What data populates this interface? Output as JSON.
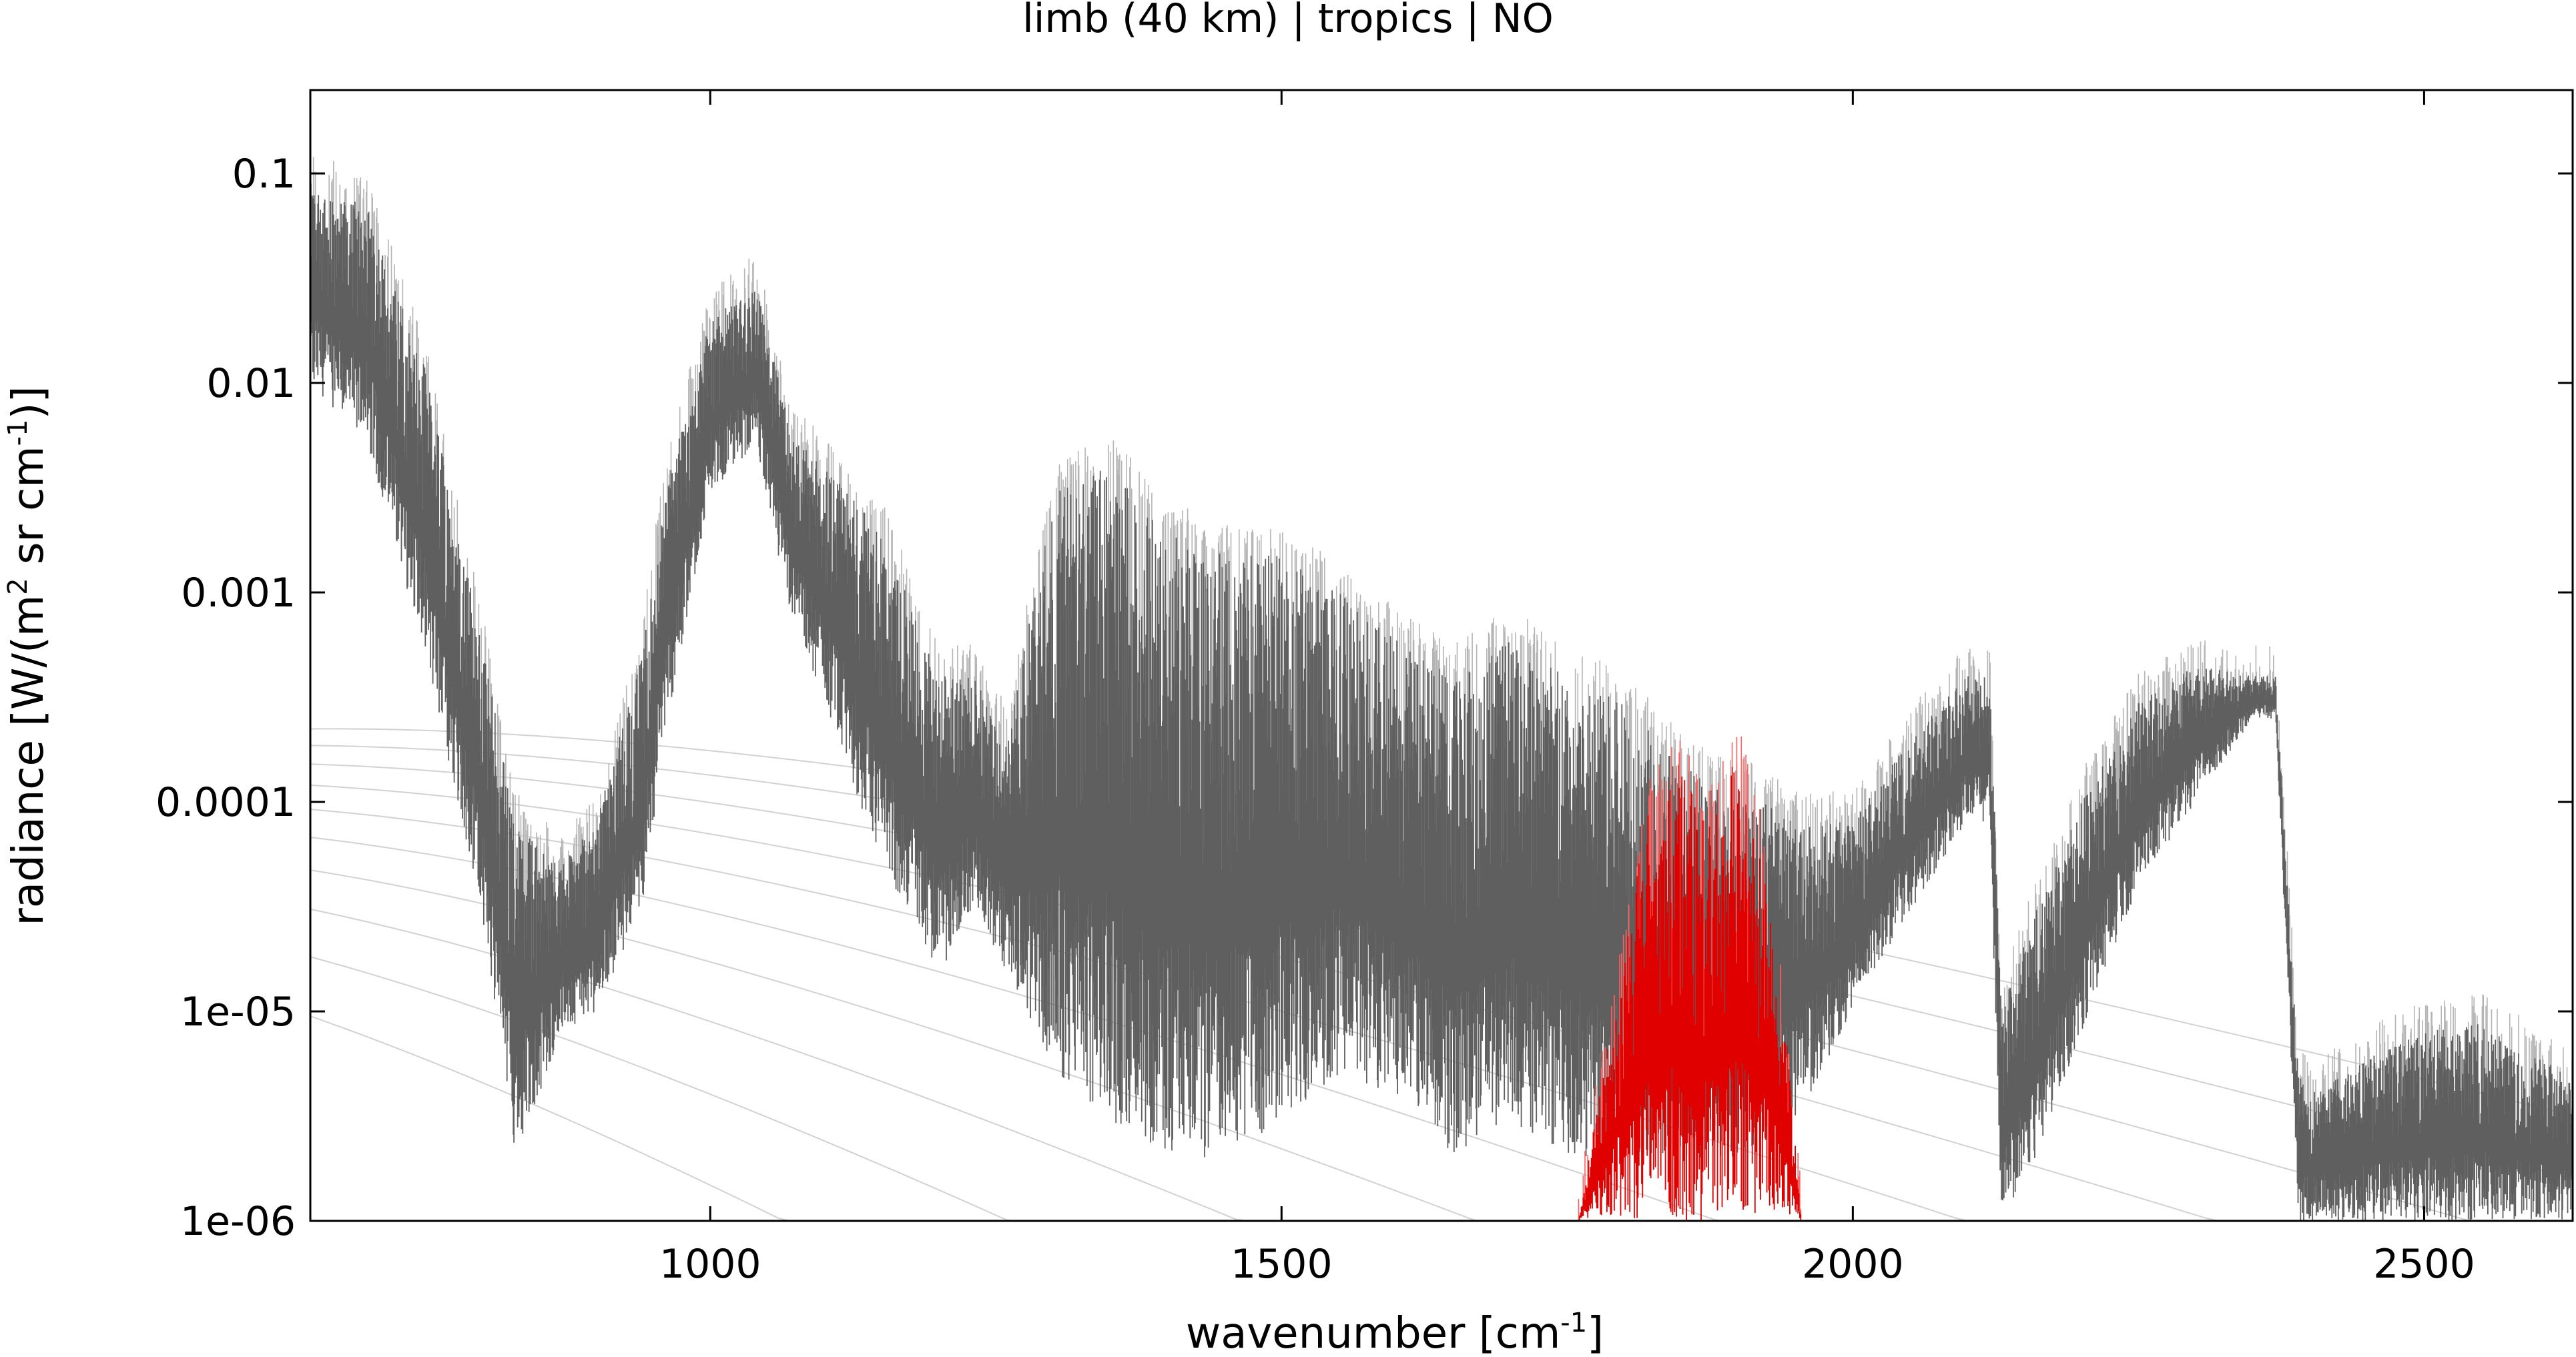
{
  "chart_data": {
    "type": "line",
    "title": "limb (40 km) | tropics | NO",
    "xlabel": {
      "prefix": "wavenumber [cm",
      "sup": "-1",
      "suffix": "]"
    },
    "ylabel": {
      "p1": "radiance [W/(m",
      "s1": "2",
      "p2": " sr cm",
      "s2": "-1",
      "p3": ")]"
    },
    "xlim": [
      650,
      2630
    ],
    "ylim": [
      1e-06,
      0.25
    ],
    "yscale": "log",
    "grid": false,
    "legend": "none",
    "xticks": [
      {
        "value": 1000,
        "label": "1000"
      },
      {
        "value": 1500,
        "label": "1500"
      },
      {
        "value": 2000,
        "label": "2000"
      },
      {
        "value": 2500,
        "label": "2500"
      }
    ],
    "yticks": [
      {
        "value": 1e-06,
        "label": "1e-06"
      },
      {
        "value": 1e-05,
        "label": "1e-05"
      },
      {
        "value": 0.0001,
        "label": "0.0001"
      },
      {
        "value": 0.001,
        "label": "0.001"
      },
      {
        "value": 0.01,
        "label": "0.01"
      },
      {
        "value": 0.1,
        "label": "0.1"
      }
    ],
    "colors": {
      "total_spectrum": "#5f5f5f",
      "background_spectrum": "#b4b4b4",
      "gas_spectrum": "#e00000",
      "reference_curves": "#d2d2d2"
    },
    "series": [
      {
        "role": "total",
        "x": [
          650,
          700,
          750,
          800,
          830,
          870,
          900,
          940,
          960,
          1000,
          1040,
          1070,
          1100,
          1150,
          1200,
          1230,
          1260,
          1300,
          1350,
          1400,
          1450,
          1500,
          1550,
          1600,
          1650,
          1700,
          1750,
          1800,
          1850,
          1900,
          1950,
          2000,
          2050,
          2100,
          2120,
          2130,
          2160,
          2200,
          2250,
          2300,
          2350,
          2370,
          2390,
          2400,
          2450,
          2500,
          2550,
          2600,
          2630
        ],
        "upper": [
          0.09,
          0.07,
          0.012,
          0.0006,
          8e-05,
          5e-05,
          8e-05,
          0.0005,
          0.003,
          0.02,
          0.03,
          0.006,
          0.004,
          0.002,
          0.0004,
          0.0004,
          0.0002,
          0.003,
          0.004,
          0.002,
          0.0015,
          0.0015,
          0.001,
          0.0006,
          0.0004,
          0.0006,
          0.0004,
          0.0003,
          0.00015,
          0.00012,
          8e-05,
          8e-05,
          0.0002,
          0.0004,
          0.0004,
          1e-05,
          3e-05,
          0.0001,
          0.0003,
          0.00045,
          0.0004,
          0.0004,
          5e-06,
          4e-06,
          6e-06,
          8e-06,
          9e-06,
          6e-06,
          5e-06
        ],
        "lower": [
          0.01,
          0.005,
          0.0005,
          3e-05,
          2e-06,
          8e-06,
          1e-05,
          3e-05,
          0.0002,
          0.003,
          0.005,
          0.0008,
          0.0003,
          5e-05,
          1.5e-05,
          3e-05,
          1.5e-05,
          5e-06,
          3e-06,
          2e-06,
          2e-06,
          3e-06,
          5e-06,
          4e-06,
          2e-06,
          3e-06,
          2e-06,
          2e-06,
          2e-06,
          2e-06,
          3e-06,
          1e-05,
          3e-05,
          8e-05,
          8e-05,
          1e-06,
          2e-06,
          8e-06,
          4e-05,
          0.0001,
          0.00025,
          0.00025,
          1e-06,
          1e-06,
          1e-06,
          1e-06,
          1e-06,
          1e-06,
          1e-06
        ]
      },
      {
        "role": "NO",
        "x": [
          1760,
          1790,
          1820,
          1850,
          1870,
          1880,
          1900,
          1920,
          1940,
          1955
        ],
        "upper": [
          1e-06,
          1e-05,
          9e-05,
          0.00015,
          8e-05,
          9e-05,
          0.00018,
          6e-05,
          1e-05,
          1e-06
        ],
        "lower": [
          1e-06,
          1e-06,
          1e-06,
          1e-06,
          1e-06,
          1e-06,
          1e-06,
          1e-06,
          1e-06,
          1e-06
        ]
      }
    ],
    "reference_curves": {
      "description": "blackbody radiance curves",
      "temperatures_K": [
        160,
        180,
        200,
        220,
        240,
        260,
        280,
        300,
        320,
        340
      ]
    }
  }
}
